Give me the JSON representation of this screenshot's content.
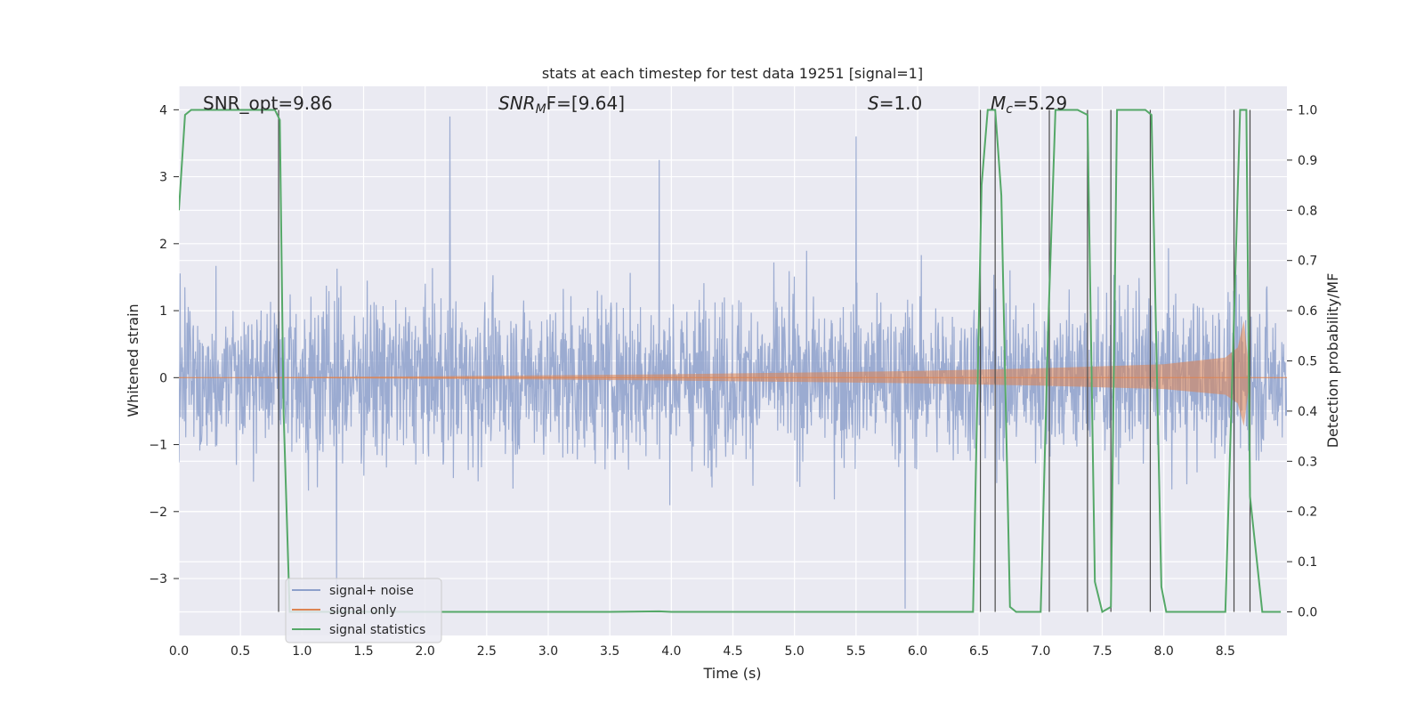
{
  "chart_data": {
    "type": "line",
    "title": "stats at each timestep for test data 19251 [signal=1]",
    "xlabel": "Time (s)",
    "ylabel_left": "Whitened strain",
    "ylabel_right": "Detection probability/MF",
    "xlim": [
      0.0,
      9.0
    ],
    "ylim_left": [
      -3.85,
      4.35
    ],
    "ylim_right": [
      -0.047,
      1.047
    ],
    "x_ticks": [
      "0.0",
      "0.5",
      "1.0",
      "1.5",
      "2.0",
      "2.5",
      "3.0",
      "3.5",
      "4.0",
      "4.5",
      "5.0",
      "5.5",
      "6.0",
      "6.5",
      "7.0",
      "7.5",
      "8.0",
      "8.5"
    ],
    "y_ticks_left": [
      "−3",
      "−2",
      "−1",
      "0",
      "1",
      "2",
      "3",
      "4"
    ],
    "y_ticks_right": [
      "0.0",
      "0.1",
      "0.2",
      "0.3",
      "0.4",
      "0.5",
      "0.6",
      "0.7",
      "0.8",
      "0.9",
      "1.0"
    ],
    "grid": true,
    "legend_position": "lower-left",
    "annotations": {
      "snr_opt": "SNR_opt=9.86",
      "snr_mf": "SNR",
      "snr_mf_sub": "M",
      "snr_mf_rest": "F=[9.64]",
      "s_label": "S",
      "s_value": "=1.0",
      "mc_label": "M",
      "mc_sub": "c",
      "mc_value": "=5.29"
    },
    "series": [
      {
        "name": "signal+ noise",
        "color": "#8da0cb",
        "description_values": "whitened strain noise, amplitude mostly within ±2, peaks to about 4.0 at t=2.2 and 3.6 at t=5.5, dips to −3.5 near t=5.9"
      },
      {
        "name": "signal only",
        "color": "#dd8452",
        "envelope": [
          [
            0.0,
            0.0
          ],
          [
            2.0,
            0.02
          ],
          [
            4.0,
            0.05
          ],
          [
            6.0,
            0.1
          ],
          [
            7.0,
            0.14
          ],
          [
            8.0,
            0.2
          ],
          [
            8.5,
            0.3
          ],
          [
            8.6,
            0.45
          ],
          [
            8.65,
            0.85
          ],
          [
            8.7,
            0.0
          ]
        ]
      },
      {
        "name": "signal statistics",
        "color": "#55a868",
        "x": [
          0.0,
          0.05,
          0.1,
          0.5,
          0.78,
          0.82,
          0.85,
          0.9,
          1.0,
          3.5,
          3.9,
          4.0,
          6.45,
          6.52,
          6.57,
          6.63,
          6.68,
          6.75,
          6.8,
          6.85,
          7.0,
          7.06,
          7.12,
          7.3,
          7.38,
          7.44,
          7.5,
          7.57,
          7.62,
          7.85,
          7.9,
          7.98,
          8.02,
          8.5,
          8.56,
          8.62,
          8.67,
          8.7,
          8.8,
          8.95
        ],
        "y": [
          0.8,
          0.99,
          1.0,
          1.0,
          1.0,
          0.98,
          0.4,
          0.0,
          0.0,
          0.0,
          0.001,
          0.0,
          0.0,
          0.85,
          1.0,
          1.0,
          0.83,
          0.01,
          0.0,
          0.0,
          0.0,
          0.56,
          1.0,
          1.0,
          0.99,
          0.06,
          0.0,
          0.01,
          1.0,
          1.0,
          0.99,
          0.05,
          0.0,
          0.0,
          0.5,
          1.0,
          1.0,
          0.23,
          0.0,
          0.0
        ]
      }
    ],
    "vlines_x": [
      0.81,
      6.51,
      6.63,
      7.07,
      7.38,
      7.57,
      7.89,
      8.57,
      8.7
    ]
  }
}
